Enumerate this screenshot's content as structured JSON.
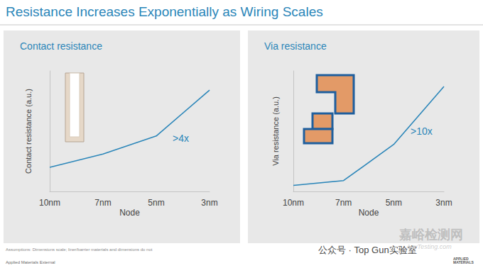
{
  "title": "Resistance Increases Exponentially as Wiring Scales",
  "chart_data": [
    {
      "type": "line",
      "title": "Contact resistance",
      "y_label": "Contact resistance (a.u.)",
      "x_label": "Node",
      "categories": [
        "10nm",
        "7nm",
        "5nm",
        "3nm"
      ],
      "values": [
        2.0,
        3.1,
        4.6,
        8.4
      ],
      "color": "#2b86b9",
      "ylim": [
        0,
        10
      ],
      "grid": false,
      "tick_labels": "x",
      "annotation": ">4x"
    },
    {
      "type": "line",
      "title": "Via resistance",
      "y_label": "Via resistance (a.u.)",
      "x_label": "Node",
      "categories": [
        "10nm",
        "7nm",
        "5nm",
        "3nm"
      ],
      "values": [
        0.5,
        0.9,
        3.9,
        8.7
      ],
      "color": "#2b86b9",
      "ylim": [
        0,
        10
      ],
      "grid": false,
      "tick_labels": "x",
      "annotation": ">10x"
    }
  ],
  "footnotes": [
    "Assumptions: Dimensions scale; liner/barrier materials and dimensions do not",
    "Applied Materials External"
  ],
  "watermarks": [
    "公众号 · Top Gun实验室",
    "嘉峪检测网",
    "AnyTesting.com",
    "APPLIED MATERIALS"
  ]
}
